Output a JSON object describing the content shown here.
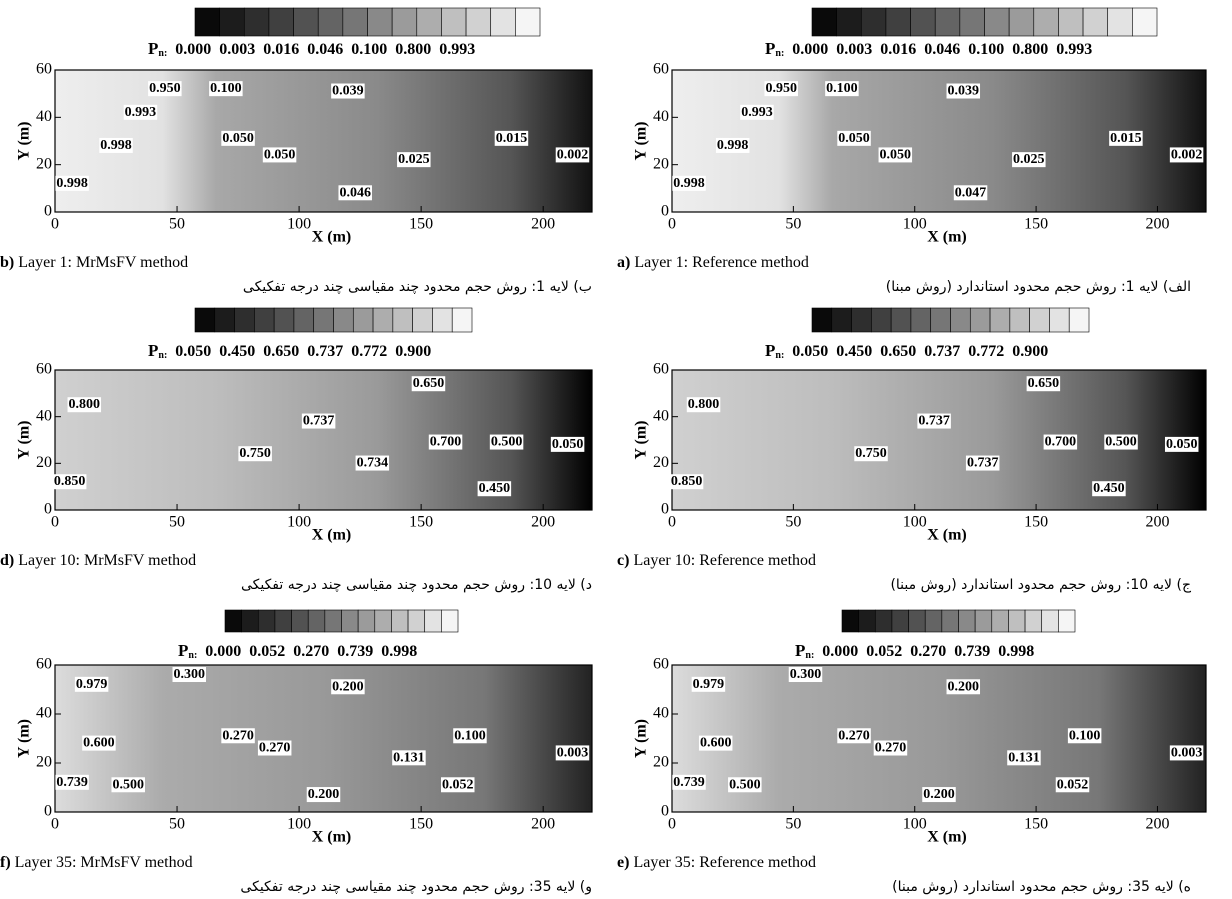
{
  "chart_data": [
    {
      "type": "contour",
      "tag": "b)",
      "caption": "Layer 1: MrMsFV method",
      "caption_fa": "ب) لایه 1: روش حجم محدود چند مقیاسی چند درجه تفکیکی",
      "legend_symbol": "P",
      "legend_subscript": "n:",
      "levels": [
        {
          "value": 0,
          "label": "0.000"
        },
        {
          "value": 0.003,
          "label": "0.003"
        },
        {
          "value": 0.016,
          "label": "0.016"
        },
        {
          "value": 0.046,
          "label": "0.046"
        },
        {
          "value": 0.1,
          "label": "0.100"
        },
        {
          "value": 0.8,
          "label": "0.800"
        },
        {
          "value": 0.993,
          "label": "0.993"
        }
      ],
      "xlabel": "X (m)",
      "ylabel": "Y (m)",
      "xlim": [
        0,
        220
      ],
      "ylim": [
        0,
        60
      ],
      "xticks": [
        0,
        50,
        100,
        150,
        200
      ],
      "yticks": [
        0,
        20,
        40,
        60
      ],
      "contour_labels": [
        {
          "text": "0.950",
          "x": 45,
          "y": 52
        },
        {
          "text": "0.100",
          "x": 70,
          "y": 52
        },
        {
          "text": "0.993",
          "x": 35,
          "y": 42
        },
        {
          "text": "0.039",
          "x": 120,
          "y": 51
        },
        {
          "text": "0.998",
          "x": 25,
          "y": 28
        },
        {
          "text": "0.050",
          "x": 75,
          "y": 31
        },
        {
          "text": "0.050",
          "x": 92,
          "y": 24
        },
        {
          "text": "0.015",
          "x": 187,
          "y": 31
        },
        {
          "text": "0.025",
          "x": 147,
          "y": 22
        },
        {
          "text": "0.002",
          "x": 212,
          "y": 24
        },
        {
          "text": "0.998",
          "x": 7,
          "y": 12
        },
        {
          "text": "0.046",
          "x": 123,
          "y": 8
        }
      ]
    },
    {
      "type": "contour",
      "tag": "a)",
      "caption": "Layer 1: Reference method",
      "caption_fa": "الف) لایه 1: روش حجم محدود استاندارد (روش مبنا)",
      "legend_symbol": "P",
      "legend_subscript": "n:",
      "levels": [
        {
          "value": 0,
          "label": "0.000"
        },
        {
          "value": 0.003,
          "label": "0.003"
        },
        {
          "value": 0.016,
          "label": "0.016"
        },
        {
          "value": 0.046,
          "label": "0.046"
        },
        {
          "value": 0.1,
          "label": "0.100"
        },
        {
          "value": 0.8,
          "label": "0.800"
        },
        {
          "value": 0.993,
          "label": "0.993"
        }
      ],
      "xlabel": "X (m)",
      "ylabel": "Y (m)",
      "xlim": [
        0,
        220
      ],
      "ylim": [
        0,
        60
      ],
      "xticks": [
        0,
        50,
        100,
        150,
        200
      ],
      "yticks": [
        0,
        20,
        40,
        60
      ],
      "contour_labels": [
        {
          "text": "0.950",
          "x": 45,
          "y": 52
        },
        {
          "text": "0.100",
          "x": 70,
          "y": 52
        },
        {
          "text": "0.993",
          "x": 35,
          "y": 42
        },
        {
          "text": "0.039",
          "x": 120,
          "y": 51
        },
        {
          "text": "0.998",
          "x": 25,
          "y": 28
        },
        {
          "text": "0.050",
          "x": 75,
          "y": 31
        },
        {
          "text": "0.050",
          "x": 92,
          "y": 24
        },
        {
          "text": "0.015",
          "x": 187,
          "y": 31
        },
        {
          "text": "0.025",
          "x": 147,
          "y": 22
        },
        {
          "text": "0.002",
          "x": 212,
          "y": 24
        },
        {
          "text": "0.998",
          "x": 7,
          "y": 12
        },
        {
          "text": "0.047",
          "x": 123,
          "y": 8
        }
      ]
    },
    {
      "type": "contour",
      "tag": "d)",
      "caption": "Layer 10: MrMsFV method",
      "caption_fa": "د) لایه 10: روش حجم محدود چند مقیاسی چند درجه تفکیکی",
      "legend_symbol": "P",
      "legend_subscript": "n:",
      "levels": [
        {
          "value": 0.05,
          "label": "0.050"
        },
        {
          "value": 0.45,
          "label": "0.450"
        },
        {
          "value": 0.65,
          "label": "0.650"
        },
        0.737,
        0.772,
        {
          "value": 0.9,
          "label": "0.900"
        }
      ],
      "xlabel": "X (m)",
      "ylabel": "Y (m)",
      "xlim": [
        0,
        220
      ],
      "ylim": [
        0,
        60
      ],
      "xticks": [
        0,
        50,
        100,
        150,
        200
      ],
      "yticks": [
        0,
        20,
        40,
        60
      ],
      "contour_labels": [
        {
          "text": "0.800",
          "x": 12,
          "y": 45
        },
        {
          "text": "0.650",
          "x": 153,
          "y": 54
        },
        {
          "text": "0.737",
          "x": 108,
          "y": 38
        },
        {
          "text": "0.700",
          "x": 160,
          "y": 29
        },
        {
          "text": "0.500",
          "x": 185,
          "y": 29
        },
        {
          "text": "0.750",
          "x": 82,
          "y": 24
        },
        {
          "text": "0.734",
          "x": 130,
          "y": 20
        },
        {
          "text": "0.050",
          "x": 210,
          "y": 28
        },
        {
          "text": "0.850",
          "x": 6,
          "y": 12
        },
        {
          "text": "0.450",
          "x": 180,
          "y": 9
        }
      ]
    },
    {
      "type": "contour",
      "tag": "c)",
      "caption": "Layer 10: Reference method",
      "caption_fa": "ج) لایه 10: روش حجم محدود استاندارد (روش مبنا)",
      "legend_symbol": "P",
      "legend_subscript": "n:",
      "levels": [
        {
          "value": 0.05,
          "label": "0.050"
        },
        {
          "value": 0.45,
          "label": "0.450"
        },
        {
          "value": 0.65,
          "label": "0.650"
        },
        0.737,
        0.772,
        {
          "value": 0.9,
          "label": "0.900"
        }
      ],
      "xlabel": "X (m)",
      "ylabel": "Y (m)",
      "xlim": [
        0,
        220
      ],
      "ylim": [
        0,
        60
      ],
      "xticks": [
        0,
        50,
        100,
        150,
        200
      ],
      "yticks": [
        0,
        20,
        40,
        60
      ],
      "contour_labels": [
        {
          "text": "0.800",
          "x": 13,
          "y": 45
        },
        {
          "text": "0.650",
          "x": 153,
          "y": 54
        },
        {
          "text": "0.737",
          "x": 108,
          "y": 38
        },
        {
          "text": "0.700",
          "x": 160,
          "y": 29
        },
        {
          "text": "0.500",
          "x": 185,
          "y": 29
        },
        {
          "text": "0.750",
          "x": 82,
          "y": 24
        },
        {
          "text": "0.737",
          "x": 128,
          "y": 20
        },
        {
          "text": "0.050",
          "x": 210,
          "y": 28
        },
        {
          "text": "0.850",
          "x": 6,
          "y": 12
        },
        {
          "text": "0.450",
          "x": 180,
          "y": 9
        }
      ]
    },
    {
      "type": "contour",
      "tag": "f)",
      "caption": "Layer 35: MrMsFV method",
      "caption_fa": "و) لایه 35: روش حجم محدود چند مقیاسی چند درجه تفکیکی",
      "legend_symbol": "P",
      "legend_subscript": "n:",
      "levels": [
        {
          "value": 0,
          "label": "0.000"
        },
        0.052,
        {
          "value": 0.27,
          "label": "0.270"
        },
        0.739,
        0.998
      ],
      "xlabel": "X (m)",
      "ylabel": "Y (m)",
      "xlim": [
        0,
        220
      ],
      "ylim": [
        0,
        60
      ],
      "xticks": [
        0,
        50,
        100,
        150,
        200
      ],
      "yticks": [
        0,
        20,
        40,
        60
      ],
      "contour_labels": [
        {
          "text": "0.979",
          "x": 15,
          "y": 52
        },
        {
          "text": "0.300",
          "x": 55,
          "y": 56
        },
        {
          "text": "0.200",
          "x": 120,
          "y": 51
        },
        {
          "text": "0.270",
          "x": 75,
          "y": 31
        },
        {
          "text": "0.270",
          "x": 90,
          "y": 26
        },
        {
          "text": "0.100",
          "x": 170,
          "y": 31
        },
        {
          "text": "0.600",
          "x": 18,
          "y": 28
        },
        {
          "text": "0.131",
          "x": 145,
          "y": 22
        },
        {
          "text": "0.003",
          "x": 212,
          "y": 24
        },
        {
          "text": "0.739",
          "x": 7,
          "y": 12
        },
        {
          "text": "0.500",
          "x": 30,
          "y": 11
        },
        {
          "text": "0.200",
          "x": 110,
          "y": 7
        },
        {
          "text": "0.052",
          "x": 165,
          "y": 11
        }
      ]
    },
    {
      "type": "contour",
      "tag": "e)",
      "caption": "Layer 35: Reference method",
      "caption_fa": "ه) لایه 35: روش حجم محدود استاندارد (روش مبنا)",
      "legend_symbol": "P",
      "legend_subscript": "n:",
      "levels": [
        {
          "value": 0,
          "label": "0.000"
        },
        0.052,
        {
          "value": 0.27,
          "label": "0.270"
        },
        0.739,
        0.998
      ],
      "xlabel": "X (m)",
      "ylabel": "Y (m)",
      "xlim": [
        0,
        220
      ],
      "ylim": [
        0,
        60
      ],
      "xticks": [
        0,
        50,
        100,
        150,
        200
      ],
      "yticks": [
        0,
        20,
        40,
        60
      ],
      "contour_labels": [
        {
          "text": "0.979",
          "x": 15,
          "y": 52
        },
        {
          "text": "0.300",
          "x": 55,
          "y": 56
        },
        {
          "text": "0.200",
          "x": 120,
          "y": 51
        },
        {
          "text": "0.270",
          "x": 75,
          "y": 31
        },
        {
          "text": "0.270",
          "x": 90,
          "y": 26
        },
        {
          "text": "0.100",
          "x": 170,
          "y": 31
        },
        {
          "text": "0.600",
          "x": 18,
          "y": 28
        },
        {
          "text": "0.131",
          "x": 145,
          "y": 22
        },
        {
          "text": "0.003",
          "x": 212,
          "y": 24
        },
        {
          "text": "0.739",
          "x": 7,
          "y": 12
        },
        {
          "text": "0.500",
          "x": 30,
          "y": 11
        },
        {
          "text": "0.200",
          "x": 110,
          "y": 7
        },
        {
          "text": "0.052",
          "x": 165,
          "y": 11
        }
      ]
    }
  ]
}
